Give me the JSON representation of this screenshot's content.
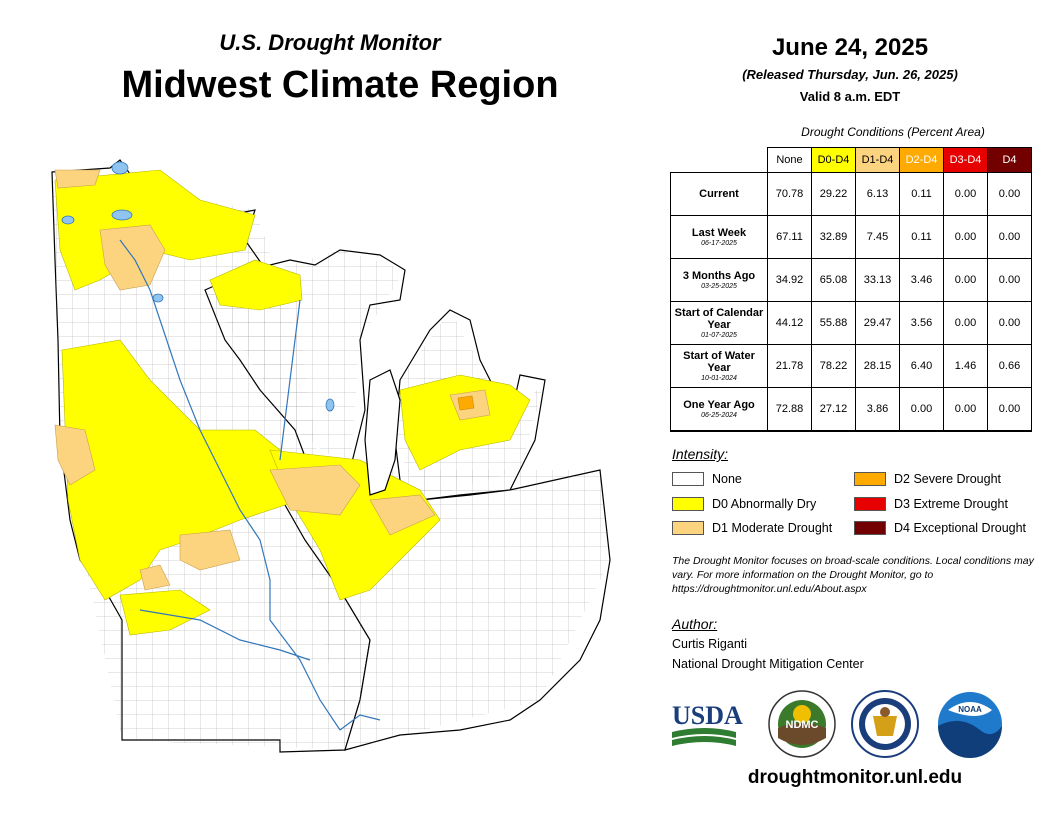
{
  "header": {
    "subtitle": "U.S. Drought Monitor",
    "title": "Midwest Climate Region"
  },
  "info": {
    "date": "June 24, 2025",
    "released": "(Released Thursday, Jun. 26, 2025)",
    "valid": "Valid 8 a.m. EDT"
  },
  "table": {
    "caption": "Drought Conditions (Percent Area)",
    "columns": [
      {
        "label": "None",
        "color": "#ffffff",
        "text_color": "#000000"
      },
      {
        "label": "D0-D4",
        "color": "#ffff00",
        "text_color": "#000000"
      },
      {
        "label": "D1-D4",
        "color": "#fcd37f",
        "text_color": "#000000"
      },
      {
        "label": "D2-D4",
        "color": "#ffaa00",
        "text_color": "#ffffff"
      },
      {
        "label": "D3-D4",
        "color": "#e60000",
        "text_color": "#ffffff"
      },
      {
        "label": "D4",
        "color": "#730000",
        "text_color": "#ffffff"
      }
    ],
    "rows": [
      {
        "label": "Current",
        "sub": "",
        "values": [
          "70.78",
          "29.22",
          "6.13",
          "0.11",
          "0.00",
          "0.00"
        ]
      },
      {
        "label": "Last Week",
        "sub": "06-17-2025",
        "values": [
          "67.11",
          "32.89",
          "7.45",
          "0.11",
          "0.00",
          "0.00"
        ]
      },
      {
        "label": "3 Months Ago",
        "sub": "03-25-2025",
        "values": [
          "34.92",
          "65.08",
          "33.13",
          "3.46",
          "0.00",
          "0.00"
        ]
      },
      {
        "label": "Start of Calendar Year",
        "sub": "01-07-2025",
        "values": [
          "44.12",
          "55.88",
          "29.47",
          "3.56",
          "0.00",
          "0.00"
        ]
      },
      {
        "label": "Start of Water Year",
        "sub": "10-01-2024",
        "values": [
          "21.78",
          "78.22",
          "28.15",
          "6.40",
          "1.46",
          "0.66"
        ]
      },
      {
        "label": "One Year Ago",
        "sub": "06-25-2024",
        "values": [
          "72.88",
          "27.12",
          "3.86",
          "0.00",
          "0.00",
          "0.00"
        ]
      }
    ]
  },
  "legend": {
    "title": "Intensity:",
    "items": [
      {
        "label": "None",
        "color": "#ffffff"
      },
      {
        "label": "D0 Abnormally Dry",
        "color": "#ffff00"
      },
      {
        "label": "D1 Moderate Drought",
        "color": "#fcd37f"
      },
      {
        "label": "D2 Severe Drought",
        "color": "#ffaa00"
      },
      {
        "label": "D3 Extreme Drought",
        "color": "#e60000"
      },
      {
        "label": "D4 Exceptional Drought",
        "color": "#730000"
      }
    ]
  },
  "note": "The Drought Monitor focuses on broad-scale conditions. Local conditions may vary. For more information on the Drought Monitor, go to https://droughtmonitor.unl.edu/About.aspx",
  "author": {
    "title": "Author:",
    "name": "Curtis Riganti",
    "org": "National Drought Mitigation Center"
  },
  "logos": {
    "usda": "USDA",
    "ndmc": "NDMC",
    "noaa": "NOAA"
  },
  "site_url": "droughtmonitor.unl.edu",
  "colors": {
    "water": "#8fc4ee",
    "d0": "#ffff00",
    "d1": "#fcd37f",
    "d2": "#ffaa00"
  }
}
